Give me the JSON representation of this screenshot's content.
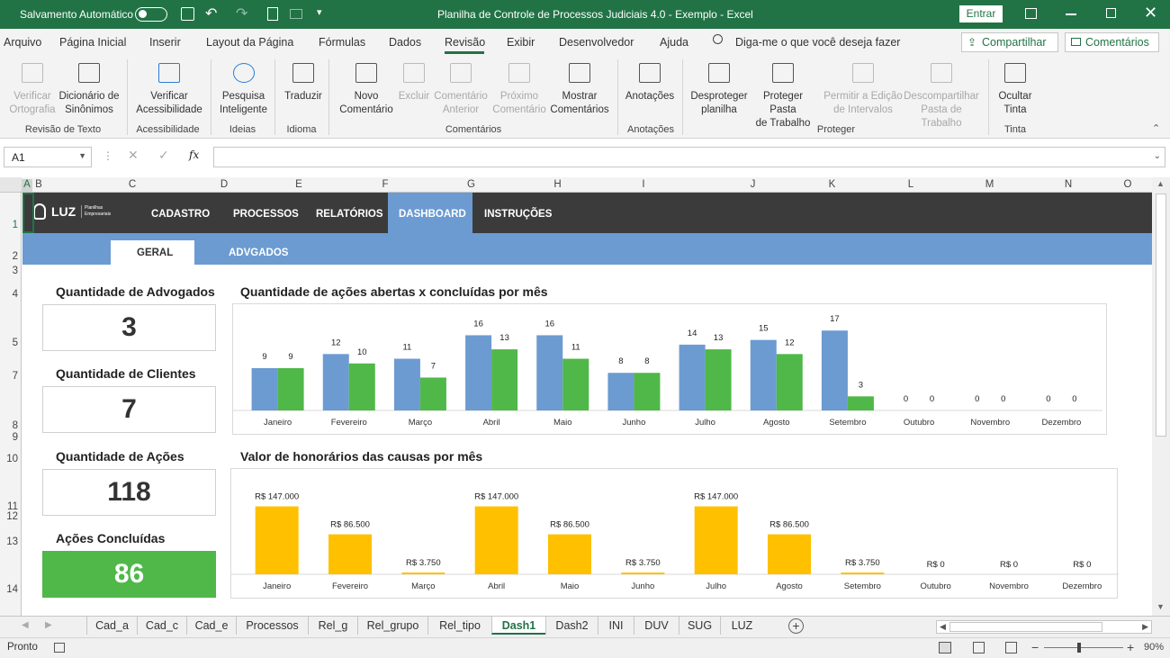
{
  "titlebar": {
    "autosave_label": "Salvamento Automático",
    "doc_title": "Planilha de Controle de Processos Judiciais 4.0 - Exemplo  -  Excel",
    "signin": "Entrar"
  },
  "menu": {
    "items": [
      "Arquivo",
      "Página Inicial",
      "Inserir",
      "Layout da Página",
      "Fórmulas",
      "Dados",
      "Revisão",
      "Exibir",
      "Desenvolvedor",
      "Ajuda"
    ],
    "active": "Revisão",
    "tellme": "Diga-me o que você deseja fazer",
    "share": "Compartilhar",
    "comments": "Comentários"
  },
  "ribbon": {
    "buttons": [
      {
        "l1": "Verificar",
        "l2": "Ortografia",
        "disabled": true
      },
      {
        "l1": "Dicionário de",
        "l2": "Sinônimos",
        "disabled": false
      },
      {
        "l1": "Verificar",
        "l2": "Acessibilidade",
        "disabled": false
      },
      {
        "l1": "Pesquisa",
        "l2": "Inteligente",
        "disabled": false
      },
      {
        "l1": "Traduzir",
        "l2": "",
        "disabled": false
      },
      {
        "l1": "Novo",
        "l2": "Comentário",
        "disabled": false
      },
      {
        "l1": "Excluir",
        "l2": "",
        "disabled": true
      },
      {
        "l1": "Comentário",
        "l2": "Anterior",
        "disabled": true
      },
      {
        "l1": "Próximo",
        "l2": "Comentário",
        "disabled": true
      },
      {
        "l1": "Mostrar",
        "l2": "Comentários",
        "disabled": false
      },
      {
        "l1": "Anotações",
        "l2": "",
        "disabled": false
      },
      {
        "l1": "Desproteger",
        "l2": "planilha",
        "disabled": false
      },
      {
        "l1": "Proteger Pasta",
        "l2": "de Trabalho",
        "disabled": false
      },
      {
        "l1": "Permitir a Edição",
        "l2": "de Intervalos",
        "disabled": true
      },
      {
        "l1": "Descompartilhar",
        "l2": "Pasta de Trabalho",
        "disabled": true
      },
      {
        "l1": "Ocultar",
        "l2": "Tinta",
        "disabled": false
      }
    ],
    "groups": [
      "Revisão de Texto",
      "Acessibilidade",
      "Ideias",
      "Idioma",
      "Comentários",
      "Anotações",
      "Proteger",
      "Tinta"
    ]
  },
  "formula": {
    "namebox": "A1",
    "fx": "fx",
    "value": ""
  },
  "columns": [
    "A",
    "B",
    "C",
    "D",
    "E",
    "F",
    "G",
    "H",
    "I",
    "J",
    "K",
    "L",
    "M",
    "N",
    "O"
  ],
  "rows": [
    "1",
    "2",
    "3",
    "4",
    "5",
    "7",
    "8",
    "9",
    "10",
    "11",
    "12",
    "13",
    "14"
  ],
  "dashboard": {
    "logo": "LUZ",
    "logo_sub": "Planilhas Empresariais",
    "nav": [
      "CADASTRO",
      "PROCESSOS",
      "RELATÓRIOS",
      "DASHBOARD",
      "INSTRUÇÕES"
    ],
    "subnav": [
      "GERAL",
      "ADVGADOS"
    ],
    "kpis": [
      {
        "title": "Quantidade de Advogados",
        "value": "3"
      },
      {
        "title": "Quantidade de Clientes",
        "value": "7"
      },
      {
        "title": "Quantidade de Ações",
        "value": "118"
      },
      {
        "title": "Ações Concluídas",
        "value": "86"
      }
    ]
  },
  "chart_data": [
    {
      "type": "bar",
      "title": "Quantidade de ações abertas x concluídas por mês",
      "categories": [
        "Janeiro",
        "Fevereiro",
        "Março",
        "Abril",
        "Maio",
        "Junho",
        "Julho",
        "Agosto",
        "Setembro",
        "Outubro",
        "Novembro",
        "Dezembro"
      ],
      "series": [
        {
          "values": [
            9,
            12,
            11,
            16,
            16,
            8,
            14,
            15,
            17,
            0,
            0,
            0
          ],
          "color": "#6b9bd1"
        },
        {
          "values": [
            9,
            10,
            7,
            13,
            11,
            8,
            13,
            12,
            3,
            0,
            0,
            0
          ],
          "color": "#4fb848"
        }
      ],
      "ylim": [
        0,
        18
      ]
    },
    {
      "type": "bar",
      "title": "Valor de honorários das causas por mês",
      "categories": [
        "Janeiro",
        "Fevereiro",
        "Março",
        "Abril",
        "Maio",
        "Junho",
        "Julho",
        "Agosto",
        "Setembro",
        "Outubro",
        "Novembro",
        "Dezembro"
      ],
      "series": [
        {
          "values": [
            147000,
            86500,
            3750,
            147000,
            86500,
            3750,
            147000,
            86500,
            3750,
            0,
            0,
            0
          ],
          "labels": [
            "R$ 147.000",
            "R$ 86.500",
            "R$ 3.750",
            "R$ 147.000",
            "R$ 86.500",
            "R$ 3.750",
            "R$ 147.000",
            "R$ 86.500",
            "R$ 3.750",
            "R$ 0",
            "R$ 0",
            "R$ 0"
          ],
          "color": "#ffc000"
        }
      ],
      "ylim": [
        0,
        150000
      ]
    }
  ],
  "tabs": {
    "items": [
      "Cad_a",
      "Cad_c",
      "Cad_e",
      "Processos",
      "Rel_g",
      "Rel_grupo",
      "Rel_tipo",
      "Dash1",
      "Dash2",
      "INI",
      "DUV",
      "SUG",
      "LUZ"
    ],
    "active": "Dash1"
  },
  "status": {
    "ready": "Pronto",
    "zoom": "90%"
  },
  "colors": {
    "excel_green": "#217346",
    "nav_dark": "#3b3b3b",
    "nav_blue": "#6b9bd1",
    "kpi_green": "#4fb848",
    "bar_gold": "#ffc000"
  }
}
